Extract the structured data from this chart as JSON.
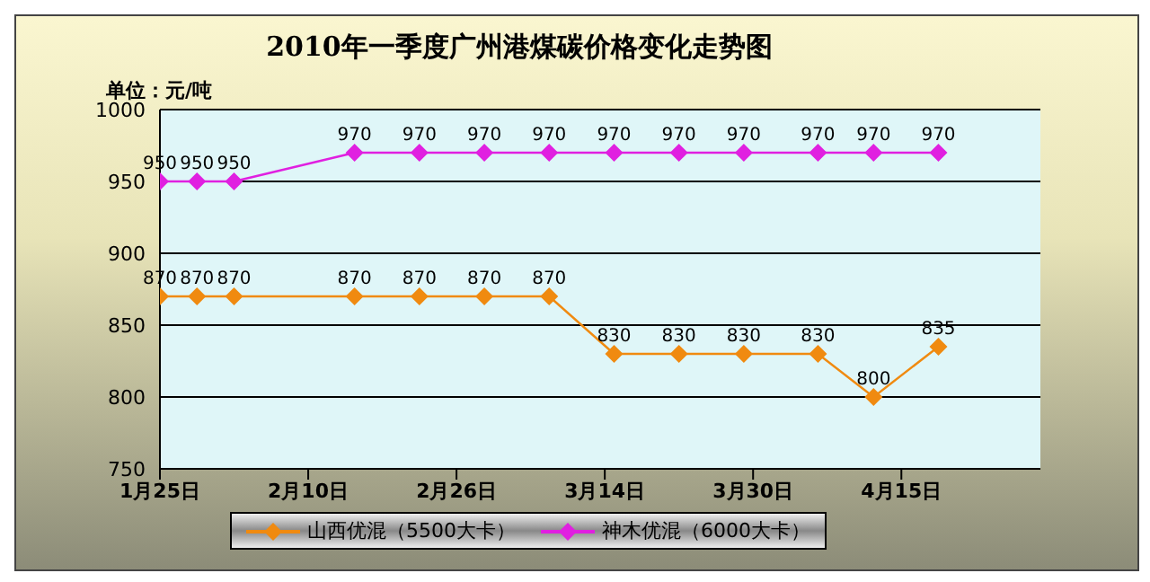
{
  "chart_data": {
    "type": "line",
    "title": "2010年一季度广州港煤碳价格变化走势图",
    "ylabel": "单位：元/吨",
    "x": [
      "2010-01-25",
      "2010-01-29",
      "2010-02-02",
      "2010-02-15",
      "2010-02-22",
      "2010-03-01",
      "2010-03-08",
      "2010-03-15",
      "2010-03-22",
      "2010-03-29",
      "2010-04-06",
      "2010-04-12",
      "2010-04-19"
    ],
    "series": [
      {
        "name": "山西优混（5500大卡）",
        "color": "#f08a10",
        "values": [
          870,
          870,
          870,
          870,
          870,
          870,
          870,
          830,
          830,
          830,
          830,
          800,
          835
        ]
      },
      {
        "name": "神木优混（6000大卡）",
        "color": "#e020e0",
        "values": [
          950,
          950,
          950,
          970,
          970,
          970,
          970,
          970,
          970,
          970,
          970,
          970,
          970
        ]
      }
    ],
    "xlim": [
      "2010-01-25",
      "2010-04-30"
    ],
    "xticks": [
      {
        "value": "2010-01-25",
        "label": "1月25日"
      },
      {
        "value": "2010-02-10",
        "label": "2月10日"
      },
      {
        "value": "2010-02-26",
        "label": "2月26日"
      },
      {
        "value": "2010-03-14",
        "label": "3月14日"
      },
      {
        "value": "2010-03-30",
        "label": "3月30日"
      },
      {
        "value": "2010-04-15",
        "label": "4月15日"
      }
    ],
    "ylim": [
      750,
      1000
    ],
    "yticks": [
      750,
      800,
      850,
      900,
      950,
      1000
    ],
    "grid": "y",
    "legend": "bottom",
    "marker": "diamond",
    "line_style": "solid",
    "data_labels": true
  }
}
